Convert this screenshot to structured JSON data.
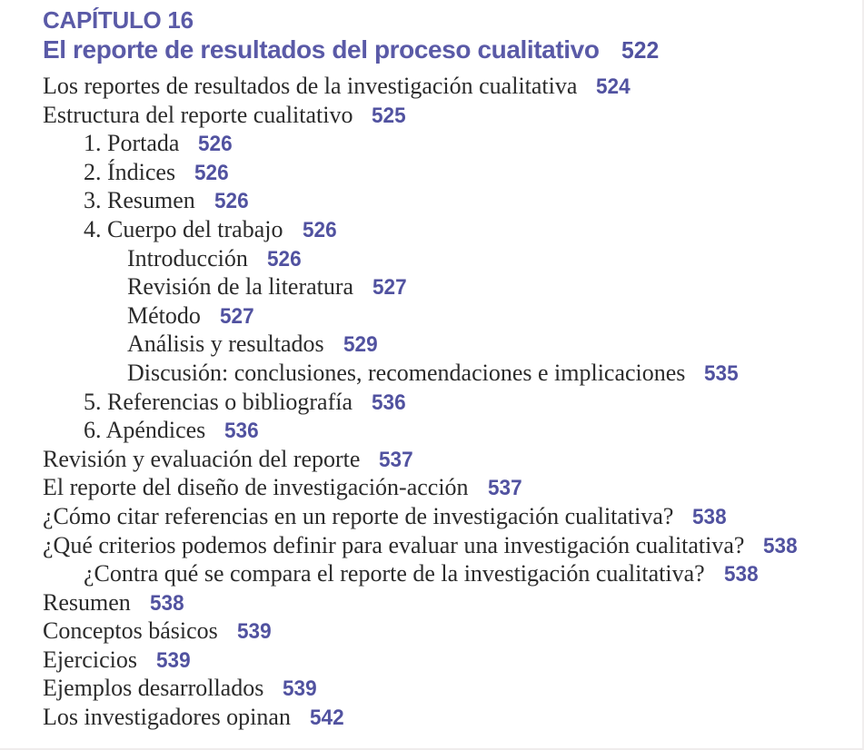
{
  "chapter": {
    "label": "CAPÍTULO 16",
    "title": "El reporte de resultados del proceso cualitativo",
    "page": "522"
  },
  "entries": [
    {
      "text": "Los reportes de resultados de la investigación cualitativa",
      "page": "524",
      "level": 0
    },
    {
      "text": "Estructura del reporte cualitativo",
      "page": "525",
      "level": 0
    },
    {
      "text": "1. Portada",
      "page": "526",
      "level": 1
    },
    {
      "text": "2. Índices",
      "page": "526",
      "level": 1
    },
    {
      "text": "3. Resumen",
      "page": "526",
      "level": 1
    },
    {
      "text": "4. Cuerpo del trabajo",
      "page": "526",
      "level": 1
    },
    {
      "text": "Introducción",
      "page": "526",
      "level": 2
    },
    {
      "text": "Revisión de la literatura",
      "page": "527",
      "level": 2
    },
    {
      "text": "Método",
      "page": "527",
      "level": 2
    },
    {
      "text": "Análisis y resultados",
      "page": "529",
      "level": 2
    },
    {
      "text": "Discusión: conclusiones, recomendaciones e implicaciones",
      "page": "535",
      "level": 2
    },
    {
      "text": "5. Referencias o bibliografía",
      "page": "536",
      "level": 1
    },
    {
      "text": "6. Apéndices",
      "page": "536",
      "level": 1
    },
    {
      "text": "Revisión y evaluación del reporte",
      "page": "537",
      "level": 0
    },
    {
      "text": "El reporte del diseño de investigación-acción",
      "page": "537",
      "level": 0
    },
    {
      "text": "¿Cómo citar referencias en un reporte de investigación cualitativa?",
      "page": "538",
      "level": 0
    },
    {
      "text": "¿Qué criterios podemos definir para evaluar una investigación cualitativa?",
      "page": "538",
      "level": 0
    },
    {
      "text": "¿Contra qué se compara el reporte de la investigación cualitativa?",
      "page": "538",
      "level": 1
    },
    {
      "text": "Resumen",
      "page": "538",
      "level": 0
    },
    {
      "text": "Conceptos básicos",
      "page": "539",
      "level": 0
    },
    {
      "text": "Ejercicios",
      "page": "539",
      "level": 0
    },
    {
      "text": "Ejemplos desarrollados",
      "page": "539",
      "level": 0
    },
    {
      "text": "Los investigadores opinan",
      "page": "542",
      "level": 0
    }
  ]
}
